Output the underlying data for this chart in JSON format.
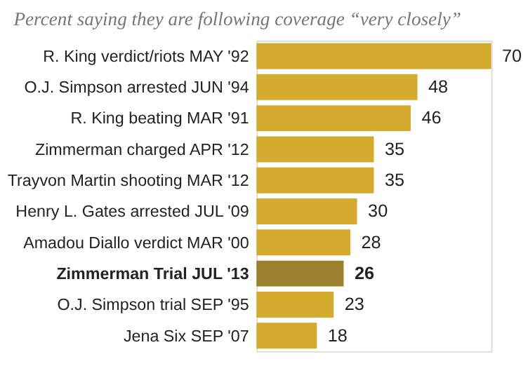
{
  "chart_data": {
    "type": "bar",
    "orientation": "horizontal",
    "title": "Percent saying they are following coverage “very closely”",
    "categories": [
      "R. King verdict/riots MAY '92",
      "O.J. Simpson arrested JUN '94",
      "R. King beating MAR '91",
      "Zimmerman charged APR '12",
      "Trayvon Martin shooting MAR '12",
      "Henry L. Gates arrested JUL '09",
      "Amadou Diallo verdict MAR '00",
      "Zimmerman Trial JUL '13",
      "O.J. Simpson trial SEP '95",
      "Jena Six SEP '07"
    ],
    "values": [
      70,
      48,
      46,
      35,
      35,
      30,
      28,
      26,
      23,
      18
    ],
    "colors": [
      "#d4aa2f",
      "#d4aa2f",
      "#d4aa2f",
      "#d4aa2f",
      "#d4aa2f",
      "#d4aa2f",
      "#d4aa2f",
      "#9c7f2f",
      "#d4aa2f",
      "#d4aa2f"
    ],
    "data_labels": true
  }
}
